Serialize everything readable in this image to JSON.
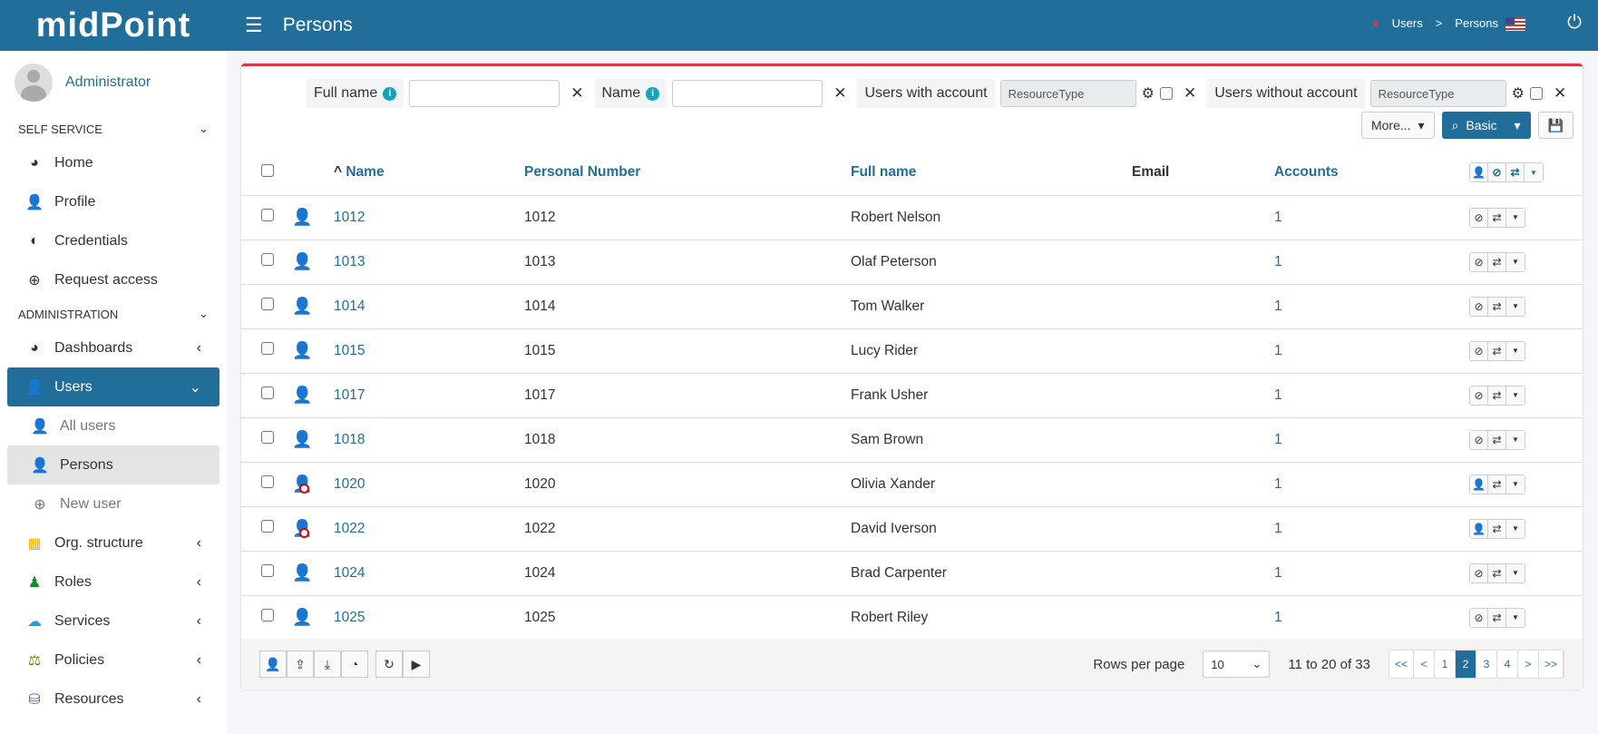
{
  "header": {
    "logo": "midPoint",
    "title": "Persons",
    "breadcrumb": [
      "Users",
      ">",
      "Persons"
    ]
  },
  "sidebar": {
    "user": "Administrator",
    "sections": [
      {
        "label": "SELF SERVICE",
        "items": [
          {
            "label": "Home",
            "icon": "◕"
          },
          {
            "label": "Profile",
            "icon": "👤"
          },
          {
            "label": "Credentials",
            "icon": "◐"
          },
          {
            "label": "Request access",
            "icon": "⊕"
          }
        ]
      },
      {
        "label": "ADMINISTRATION",
        "items": [
          {
            "label": "Dashboards",
            "icon": "◕"
          },
          {
            "label": "Users",
            "icon": "👤"
          },
          {
            "label": "All users",
            "icon": "👤"
          },
          {
            "label": "Persons",
            "icon": "👤"
          },
          {
            "label": "New user",
            "icon": "⊕"
          },
          {
            "label": "Org. structure",
            "icon": "▦"
          },
          {
            "label": "Roles",
            "icon": "♟"
          },
          {
            "label": "Services",
            "icon": "☁"
          },
          {
            "label": "Policies",
            "icon": "⚖"
          },
          {
            "label": "Resources",
            "icon": "⛁"
          }
        ]
      }
    ]
  },
  "filters": {
    "full_name": "Full name",
    "name": "Name",
    "with_account": "Users with account",
    "without_account": "Users without account",
    "resource_placeholder": "ResourceType",
    "more": "More...",
    "basic": "Basic"
  },
  "table": {
    "columns": [
      "Name",
      "Personal Number",
      "Full name",
      "Email",
      "Accounts"
    ],
    "rows": [
      {
        "name": "1012",
        "number": "1012",
        "full": "Robert Nelson",
        "email": "",
        "accounts": "1",
        "disabled": false
      },
      {
        "name": "1013",
        "number": "1013",
        "full": "Olaf Peterson",
        "email": "",
        "accounts": "1",
        "disabled": false
      },
      {
        "name": "1014",
        "number": "1014",
        "full": "Tom Walker",
        "email": "",
        "accounts": "1",
        "disabled": false
      },
      {
        "name": "1015",
        "number": "1015",
        "full": "Lucy Rider",
        "email": "",
        "accounts": "1",
        "disabled": false
      },
      {
        "name": "1017",
        "number": "1017",
        "full": "Frank Usher",
        "email": "",
        "accounts": "1",
        "disabled": false
      },
      {
        "name": "1018",
        "number": "1018",
        "full": "Sam Brown",
        "email": "",
        "accounts": "1",
        "disabled": false
      },
      {
        "name": "1020",
        "number": "1020",
        "full": "Olivia Xander",
        "email": "",
        "accounts": "1",
        "disabled": true
      },
      {
        "name": "1022",
        "number": "1022",
        "full": "David Iverson",
        "email": "",
        "accounts": "1",
        "disabled": true
      },
      {
        "name": "1024",
        "number": "1024",
        "full": "Brad Carpenter",
        "email": "",
        "accounts": "1",
        "disabled": false
      },
      {
        "name": "1025",
        "number": "1025",
        "full": "Robert Riley",
        "email": "",
        "accounts": "1",
        "disabled": false
      }
    ]
  },
  "footer": {
    "rows_per_page_label": "Rows per page",
    "rows_per_page": "10",
    "range": "11 to 20 of 33",
    "pages": [
      "<<",
      "<",
      "1",
      "2",
      "3",
      "4",
      ">",
      ">>"
    ],
    "current_page": "2"
  }
}
